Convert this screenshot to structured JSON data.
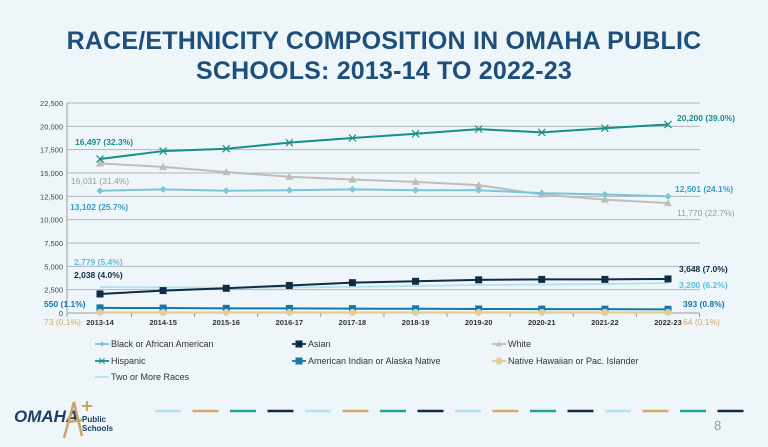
{
  "title_line1": "RACE/ETHNICITY COMPOSITION IN OMAHA PUBLIC",
  "title_line2": "SCHOOLS: 2013-14 TO 2022-23",
  "chart_data": {
    "type": "line",
    "categories": [
      "2013-14",
      "2014-15",
      "2015-16",
      "2016-17",
      "2017-18",
      "2018-19",
      "2019-20",
      "2020-21",
      "2021-22",
      "2022-23"
    ],
    "ylim": [
      0,
      22500
    ],
    "yticks": [
      0,
      2500,
      5000,
      7500,
      10000,
      12500,
      15000,
      17500,
      20000,
      22500
    ],
    "ytick_labels": [
      "0",
      "2,500",
      "5,000",
      "7,500",
      "10,000",
      "12,500",
      "15,000",
      "17,500",
      "20,000",
      "22,500"
    ],
    "grid": true,
    "legend_position": "bottom",
    "series": [
      {
        "name": "Black or African American",
        "color": "#7dc3d9",
        "label_color": "#3a9cc2",
        "marker": "diamond",
        "values": [
          13102,
          13250,
          13100,
          13150,
          13250,
          13150,
          13150,
          12850,
          12700,
          12501
        ],
        "start_label": "13,102 (25.7%)",
        "end_label": "12,501 (24.1%)"
      },
      {
        "name": "Asian",
        "color": "#0f2b45",
        "label_color": "#0f2b45",
        "marker": "square",
        "values": [
          2038,
          2400,
          2650,
          2950,
          3250,
          3400,
          3550,
          3600,
          3600,
          3648
        ],
        "start_label": "2,038 (4.0%)",
        "end_label": "3,648 (7.0%)"
      },
      {
        "name": "White",
        "color": "#bdbdbd",
        "label_color": "#9a9a9a",
        "marker": "triangle",
        "values": [
          16031,
          15650,
          15100,
          14600,
          14300,
          14050,
          13700,
          12700,
          12150,
          11770
        ],
        "start_label": "16,031 (31.4%)",
        "end_label": "11,770 (22.7%)"
      },
      {
        "name": "Hispanic",
        "color": "#178f88",
        "label_color": "#178f88",
        "marker": "x",
        "values": [
          16497,
          17350,
          17600,
          18250,
          18750,
          19200,
          19700,
          19350,
          19800,
          20200
        ],
        "start_label": "16,497 (32.3%)",
        "end_label": "20,200 (39.0%)"
      },
      {
        "name": "American Indian or Alaska Native",
        "color": "#1577a8",
        "label_color": "#1577a8",
        "marker": "square",
        "values": [
          550,
          530,
          500,
          490,
          470,
          450,
          430,
          420,
          410,
          393
        ],
        "start_label": "550 (1.1%)",
        "end_label": "393 (0.8%)"
      },
      {
        "name": "Native Hawaiian or Pac. Islander",
        "color": "#e4cd96",
        "label_color": "#d4a86c",
        "marker": "circle",
        "values": [
          73,
          70,
          70,
          68,
          68,
          66,
          65,
          65,
          64,
          64
        ],
        "start_label": "73 (0.1%)",
        "end_label": "64 (0.1%)"
      },
      {
        "name": "Two or More Races",
        "color": "#b5e0ee",
        "label_color": "#5cc0e0",
        "marker": "none",
        "values": [
          2779,
          2750,
          2700,
          2750,
          2800,
          2900,
          3000,
          3050,
          3100,
          3200
        ],
        "start_label": "2,779 (5.4%)",
        "end_label": "3,200 (6.2%)"
      }
    ]
  },
  "footer": {
    "logo_text": "OMAHA",
    "logo_mark": "A+",
    "logo_sub1": "Public",
    "logo_sub2": "Schools",
    "page_number": "8",
    "dash_colors": [
      "#b5e0ee",
      "#d6ab6a",
      "#21a395",
      "#0f2b45"
    ]
  }
}
